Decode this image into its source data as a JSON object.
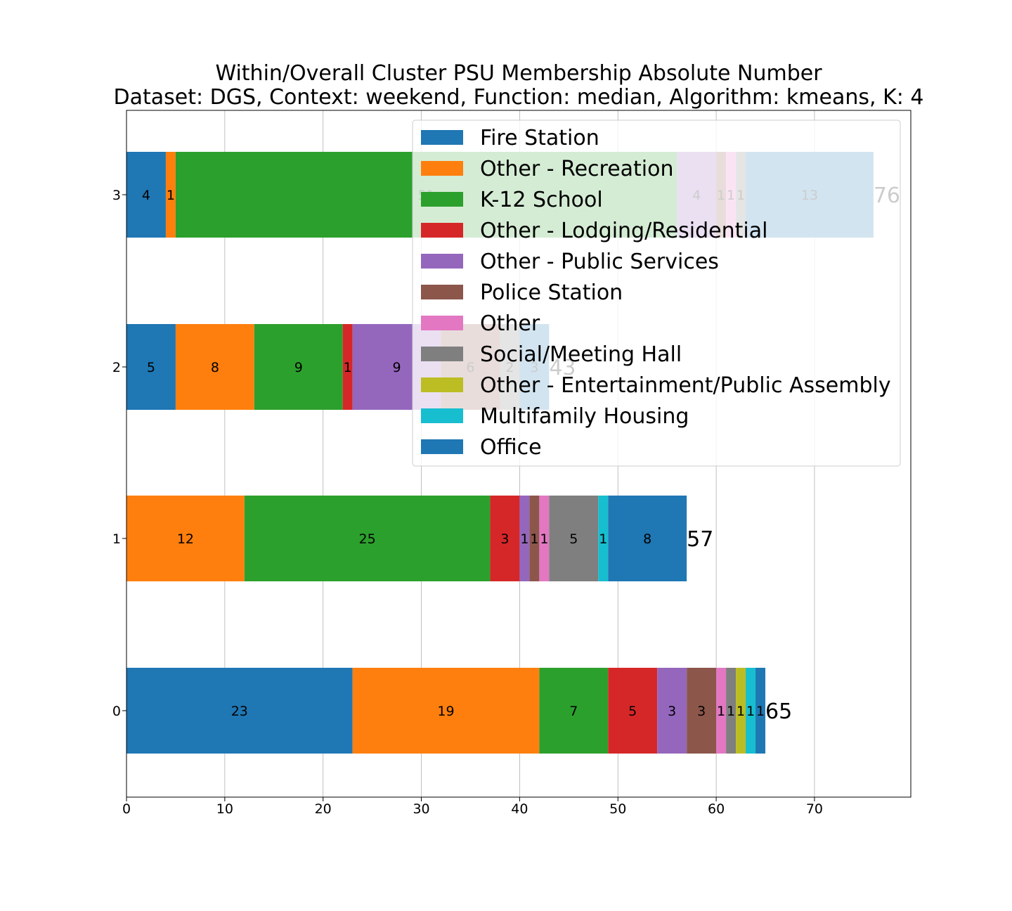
{
  "chart_data": {
    "type": "bar",
    "orientation": "horizontal",
    "stacked": true,
    "title": "Within/Overall Cluster PSU Membership Absolute Number",
    "subtitle": "Dataset: DGS, Context: weekend, Function: median, Algorithm: kmeans, K: 4",
    "xlabel": "",
    "ylabel": "",
    "xlim": [
      0,
      79.8
    ],
    "xticks": [
      0,
      10,
      20,
      30,
      40,
      50,
      60,
      70
    ],
    "categories": [
      "0",
      "1",
      "2",
      "3"
    ],
    "grid": "vertical",
    "legend_position": "upper-right",
    "series": [
      {
        "name": "Fire Station",
        "color": "#1f77b4",
        "values": [
          23,
          0,
          5,
          4
        ]
      },
      {
        "name": "Other - Recreation",
        "color": "#ff7f0e",
        "values": [
          19,
          12,
          8,
          1
        ]
      },
      {
        "name": "K-12 School",
        "color": "#2ca02c",
        "values": [
          7,
          25,
          9,
          51
        ]
      },
      {
        "name": "Other - Lodging/Residential",
        "color": "#d62728",
        "values": [
          5,
          3,
          1,
          0
        ]
      },
      {
        "name": "Other - Public Services",
        "color": "#9467bd",
        "values": [
          3,
          1,
          9,
          4
        ]
      },
      {
        "name": "Police Station",
        "color": "#8c564b",
        "values": [
          3,
          1,
          6,
          1
        ]
      },
      {
        "name": "Other",
        "color": "#e377c2",
        "values": [
          1,
          1,
          0,
          1
        ]
      },
      {
        "name": "Social/Meeting Hall",
        "color": "#7f7f7f",
        "values": [
          1,
          5,
          2,
          1
        ]
      },
      {
        "name": "Other - Entertainment/Public Assembly",
        "color": "#bcbd22",
        "values": [
          1,
          0,
          0,
          0
        ]
      },
      {
        "name": "Multifamily Housing",
        "color": "#17becf",
        "values": [
          1,
          1,
          0,
          0
        ]
      },
      {
        "name": "Office",
        "color": "#1f77b4",
        "values": [
          1,
          8,
          3,
          13
        ]
      }
    ],
    "totals": [
      65,
      57,
      43,
      76
    ]
  }
}
